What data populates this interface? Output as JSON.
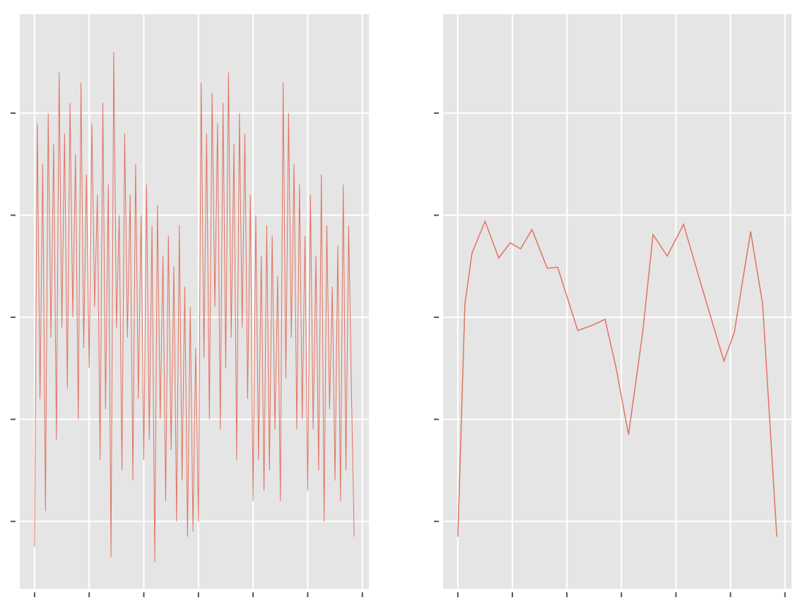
{
  "chart_data": [
    {
      "type": "line",
      "color": "#e2725f",
      "grid": true,
      "xlim": [
        -0.27,
        6.12
      ],
      "ylim": [
        -0.66,
        4.97
      ],
      "xticks": [
        0,
        1,
        2,
        3,
        4,
        5,
        6
      ],
      "yticks": [
        0,
        1,
        2,
        3,
        4
      ],
      "x": [
        0,
        0.05,
        0.1,
        0.15,
        0.2,
        0.25,
        0.3,
        0.35,
        0.4,
        0.45,
        0.5,
        0.55,
        0.6,
        0.65,
        0.7,
        0.75,
        0.8,
        0.85,
        0.9,
        0.95,
        1,
        1.05,
        1.1,
        1.15,
        1.2,
        1.25,
        1.3,
        1.35,
        1.4,
        1.45,
        1.5,
        1.55,
        1.6,
        1.65,
        1.7,
        1.75,
        1.8,
        1.85,
        1.9,
        1.95,
        2,
        2.05,
        2.1,
        2.15,
        2.2,
        2.25,
        2.3,
        2.35,
        2.4,
        2.45,
        2.5,
        2.55,
        2.6,
        2.65,
        2.7,
        2.75,
        2.8,
        2.85,
        2.9,
        2.95,
        3,
        3.05,
        3.1,
        3.15,
        3.2,
        3.25,
        3.3,
        3.35,
        3.4,
        3.45,
        3.5,
        3.55,
        3.6,
        3.65,
        3.7,
        3.75,
        3.8,
        3.85,
        3.9,
        3.95,
        4,
        4.05,
        4.1,
        4.15,
        4.2,
        4.25,
        4.3,
        4.35,
        4.4,
        4.45,
        4.5,
        4.55,
        4.6,
        4.65,
        4.7,
        4.75,
        4.8,
        4.85,
        4.9,
        4.95,
        5,
        5.05,
        5.1,
        5.15,
        5.2,
        5.25,
        5.3,
        5.35,
        5.4,
        5.45,
        5.5,
        5.55,
        5.6,
        5.65,
        5.7,
        5.75,
        5.8,
        5.85
      ],
      "values": [
        -0.25,
        3.9,
        1.2,
        3.5,
        0.1,
        4.0,
        1.8,
        3.7,
        0.8,
        4.4,
        1.9,
        3.8,
        1.3,
        4.1,
        2.0,
        3.6,
        1.0,
        4.3,
        1.7,
        3.4,
        1.5,
        3.9,
        2.1,
        3.2,
        0.6,
        4.1,
        1.1,
        3.3,
        -0.35,
        4.6,
        1.9,
        3.0,
        0.5,
        3.8,
        1.8,
        3.2,
        0.4,
        3.5,
        1.2,
        3.0,
        0.6,
        3.3,
        0.8,
        2.9,
        -0.4,
        3.1,
        1.0,
        2.6,
        0.2,
        2.8,
        0.7,
        2.5,
        0.0,
        2.9,
        0.4,
        2.3,
        -0.15,
        2.1,
        -0.1,
        1.7,
        0.0,
        4.3,
        1.6,
        3.8,
        1.0,
        4.2,
        2.1,
        3.9,
        0.9,
        4.1,
        1.5,
        4.4,
        1.8,
        3.7,
        0.6,
        4.0,
        1.9,
        3.8,
        1.2,
        3.2,
        0.2,
        3.0,
        0.6,
        2.6,
        0.3,
        2.9,
        0.5,
        2.8,
        0.9,
        2.4,
        0.2,
        4.3,
        1.4,
        4.0,
        1.8,
        3.5,
        0.9,
        3.3,
        1.0,
        2.8,
        0.3,
        3.2,
        0.9,
        2.6,
        0.5,
        3.4,
        0.0,
        2.9,
        1.1,
        2.3,
        0.4,
        2.7,
        0.2,
        3.3,
        0.5,
        2.9,
        1.3,
        -0.15
      ]
    },
    {
      "type": "line",
      "color": "#e2725f",
      "grid": true,
      "xlim": [
        -0.27,
        6.12
      ],
      "ylim": [
        -0.66,
        4.97
      ],
      "xticks": [
        0,
        1,
        2,
        3,
        4,
        5,
        6
      ],
      "yticks": [
        0,
        1,
        2,
        3,
        4
      ],
      "x": [
        0,
        0.13,
        0.26,
        0.5,
        0.75,
        0.96,
        1.15,
        1.36,
        1.64,
        1.83,
        2.2,
        2.46,
        2.7,
        2.9,
        3.13,
        3.39,
        3.58,
        3.84,
        4.14,
        4.49,
        4.88,
        5.07,
        5.37,
        5.59,
        5.85
      ],
      "values": [
        -0.15,
        2.13,
        2.63,
        2.94,
        2.58,
        2.73,
        2.67,
        2.86,
        2.48,
        2.49,
        1.87,
        1.92,
        1.98,
        1.51,
        0.85,
        1.85,
        2.81,
        2.6,
        2.91,
        2.27,
        1.57,
        1.85,
        2.84,
        2.13,
        -0.15
      ]
    }
  ]
}
